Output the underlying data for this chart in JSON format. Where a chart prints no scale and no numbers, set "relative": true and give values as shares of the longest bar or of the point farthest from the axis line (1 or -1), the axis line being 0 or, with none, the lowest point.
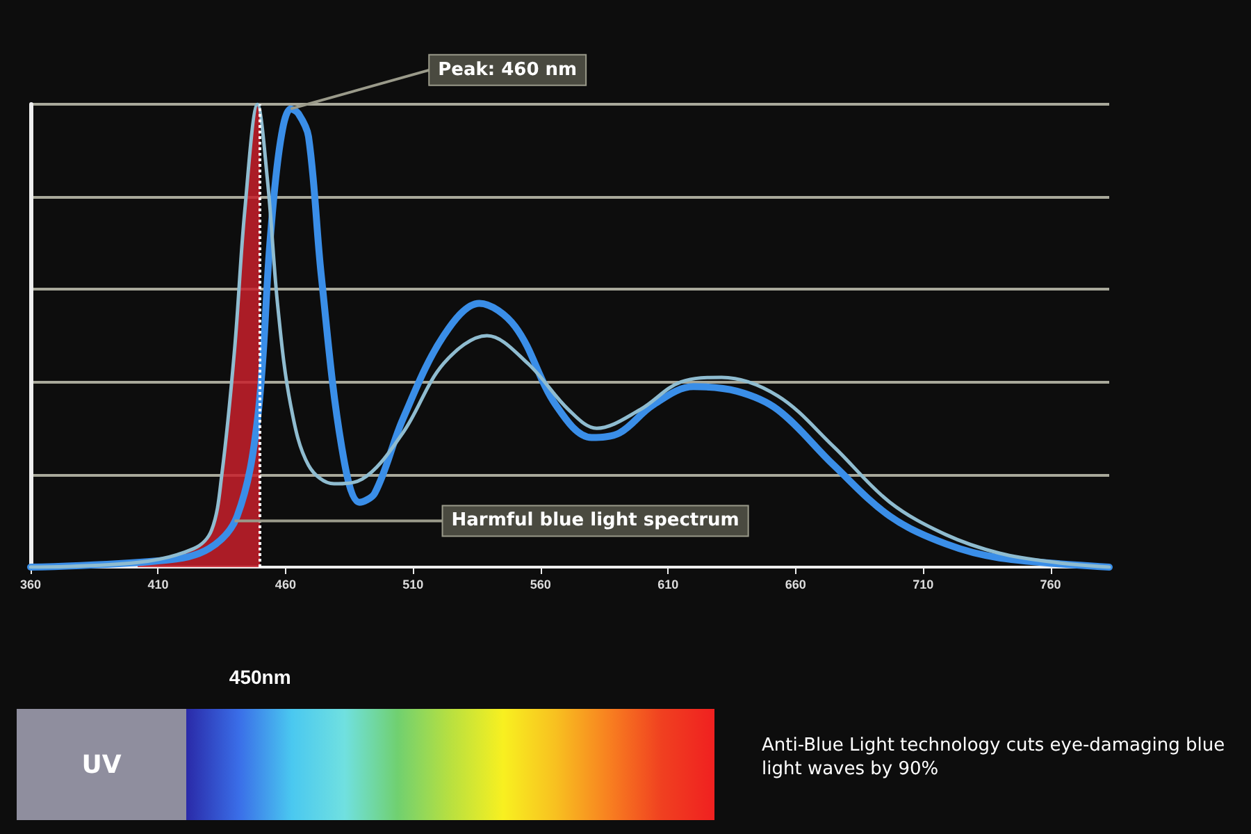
{
  "chart_data": {
    "type": "line",
    "relative": true,
    "grid": "y",
    "marker": "none",
    "line_style": "solid",
    "xlim": [
      360,
      783
    ],
    "xticks": [
      360,
      410,
      460,
      510,
      560,
      610,
      660,
      710,
      760
    ],
    "series": [
      {
        "color": "#8fbcd0",
        "x": [
          360,
          402,
          424,
          431,
          435,
          440,
          444,
          449,
          453,
          457,
          462,
          469,
          479,
          490,
          506,
          522,
          539,
          555,
          571,
          582,
          599,
          615,
          631,
          653,
          675,
          697,
          719,
          740,
          762,
          783
        ],
        "values": [
          0,
          0.01,
          0.04,
          0.08,
          0.2,
          0.47,
          0.77,
          1,
          0.83,
          0.56,
          0.35,
          0.22,
          0.18,
          0.19,
          0.29,
          0.44,
          0.5,
          0.44,
          0.34,
          0.3,
          0.34,
          0.4,
          0.41,
          0.37,
          0.26,
          0.14,
          0.07,
          0.03,
          0.01,
          0
        ]
      },
      {
        "color": "#3a8ee8",
        "x": [
          360,
          413,
          430,
          441,
          449,
          454,
          458,
          462,
          465,
          469,
          474,
          482,
          489,
          495,
          506,
          522,
          536,
          550,
          566,
          580,
          591,
          604,
          620,
          637,
          653,
          675,
          697,
          719,
          740,
          783
        ],
        "values": [
          0,
          0.015,
          0.04,
          0.11,
          0.32,
          0.71,
          0.92,
          0.99,
          0.98,
          0.93,
          0.63,
          0.26,
          0.14,
          0.16,
          0.32,
          0.5,
          0.57,
          0.52,
          0.35,
          0.28,
          0.29,
          0.35,
          0.39,
          0.38,
          0.34,
          0.22,
          0.11,
          0.05,
          0.02,
          0
        ]
      },
      {
        "type": "area",
        "color": "#c8202c",
        "x": [
          402,
          424,
          431,
          435,
          440,
          444,
          449,
          450
        ],
        "values": [
          0.01,
          0.04,
          0.08,
          0.2,
          0.47,
          0.77,
          1,
          0.97
        ]
      }
    ],
    "ref_lines": [
      {
        "axis": "x",
        "value": 450,
        "label": "450nm",
        "color": "#ffffff",
        "line_style": "dotted"
      }
    ],
    "annotations": [
      {
        "text": "Peak: 460 nm",
        "x": 462,
        "y": 0.99
      },
      {
        "text": "Harmful blue light spectrum",
        "x": 440,
        "y": 0.1
      },
      "UV",
      "Anti-Blue Light technology cuts eye-damaging blue light waves by 90%"
    ]
  }
}
